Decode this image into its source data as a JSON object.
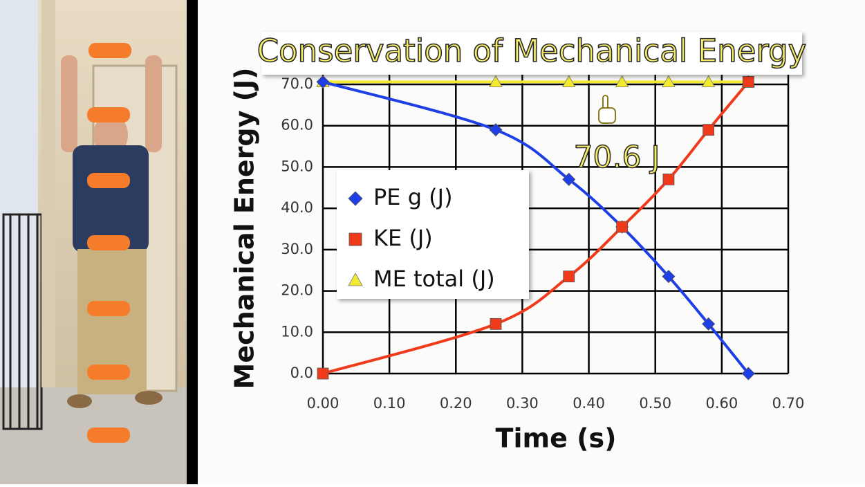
{
  "chart_data": {
    "type": "line",
    "title": "Conservation of Mechanical Energy",
    "x_label": "Time (s)",
    "y_label": "Mechanical Energy (J)",
    "x": [
      0.0,
      0.26,
      0.37,
      0.45,
      0.52,
      0.58,
      0.64
    ],
    "series": [
      {
        "name": "ME total (J)",
        "color": "#f2ea2e",
        "marker": "triangle",
        "values": [
          70.6,
          70.6,
          70.6,
          70.6,
          70.6,
          70.6,
          70.6
        ]
      },
      {
        "name": "PE g (J)",
        "color": "#1f3fe6",
        "marker": "diamond",
        "values": [
          70.6,
          59.0,
          47.0,
          35.5,
          23.5,
          12.0,
          0.0
        ]
      },
      {
        "name": "KE (J)",
        "color": "#f03a1c",
        "marker": "square",
        "values": [
          0.0,
          12.0,
          23.5,
          35.5,
          47.0,
          59.0,
          70.6
        ]
      }
    ],
    "legend_order": [
      1,
      2,
      0
    ],
    "annotation": "70.6 J",
    "xlim": [
      0,
      0.7
    ],
    "ylim": [
      0,
      70
    ],
    "xticks": [
      {
        "value": 0,
        "label": "0.00"
      },
      {
        "value": 0.1,
        "label": "0.10"
      },
      {
        "value": 0.2,
        "label": "0.20"
      },
      {
        "value": 0.3,
        "label": "0.30"
      },
      {
        "value": 0.4,
        "label": "0.40"
      },
      {
        "value": 0.5,
        "label": "0.50"
      },
      {
        "value": 0.6,
        "label": "0.60"
      },
      {
        "value": 0.7,
        "label": "0.70"
      }
    ],
    "yticks": [
      {
        "value": 0,
        "label": "0.0"
      },
      {
        "value": 10,
        "label": "10.0"
      },
      {
        "value": 20,
        "label": "20.0"
      },
      {
        "value": 30,
        "label": "30.0"
      },
      {
        "value": 40,
        "label": "40.0"
      },
      {
        "value": 50,
        "label": "50.0"
      },
      {
        "value": 60,
        "label": "60.0"
      },
      {
        "value": 70,
        "label": "70.0"
      }
    ],
    "grid": true
  }
}
